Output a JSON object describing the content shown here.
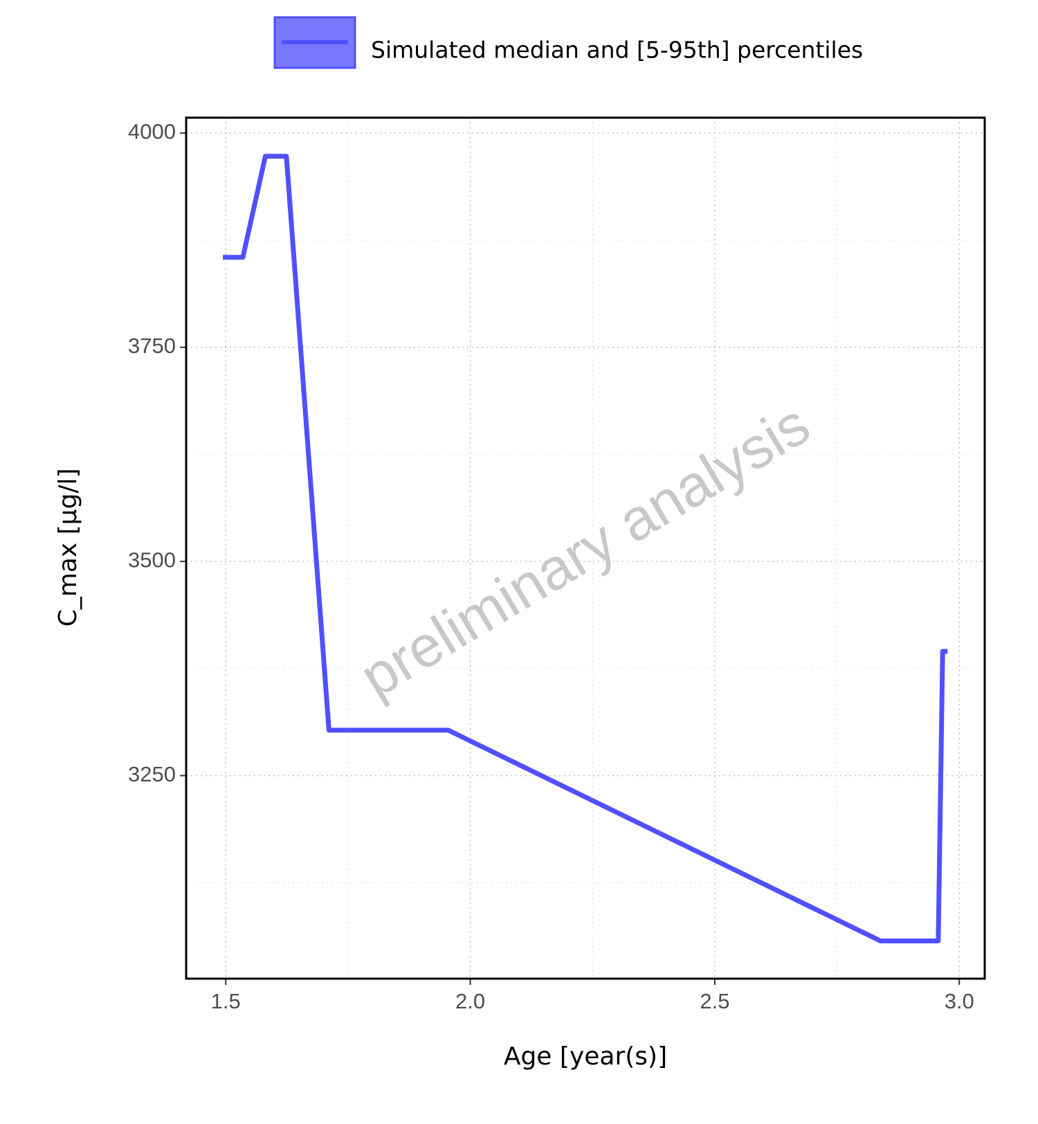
{
  "chart_data": {
    "type": "line",
    "x_label": "Age [year(s)]",
    "y_label": "C_max [µg/l]",
    "watermark": "preliminary analysis",
    "x": [
      1.494,
      1.535,
      1.581,
      1.624,
      1.711,
      1.955,
      2.839,
      2.957,
      2.966,
      2.976
    ],
    "series": [
      {
        "name": "Simulated median and [5-95th] percentiles",
        "color": "#5050ff",
        "values": [
          3855,
          3855,
          3973,
          3973,
          3303,
          3303,
          3057,
          3057,
          3395,
          3395
        ]
      }
    ],
    "xlim": [
      1.419,
      3.052
    ],
    "ylim": [
      3013,
      4018
    ],
    "xticks": [
      1.5,
      {
        "value": 2,
        "label": "2.0"
      },
      2.5,
      {
        "value": 3,
        "label": "3.0"
      }
    ],
    "yticks": [
      3250,
      3500,
      3750,
      4000
    ],
    "minor_xticks": [
      1.75,
      2.25,
      2.75
    ],
    "minor_yticks": [
      3125,
      3375,
      3625,
      3875
    ],
    "grid": true,
    "legend": "top"
  }
}
